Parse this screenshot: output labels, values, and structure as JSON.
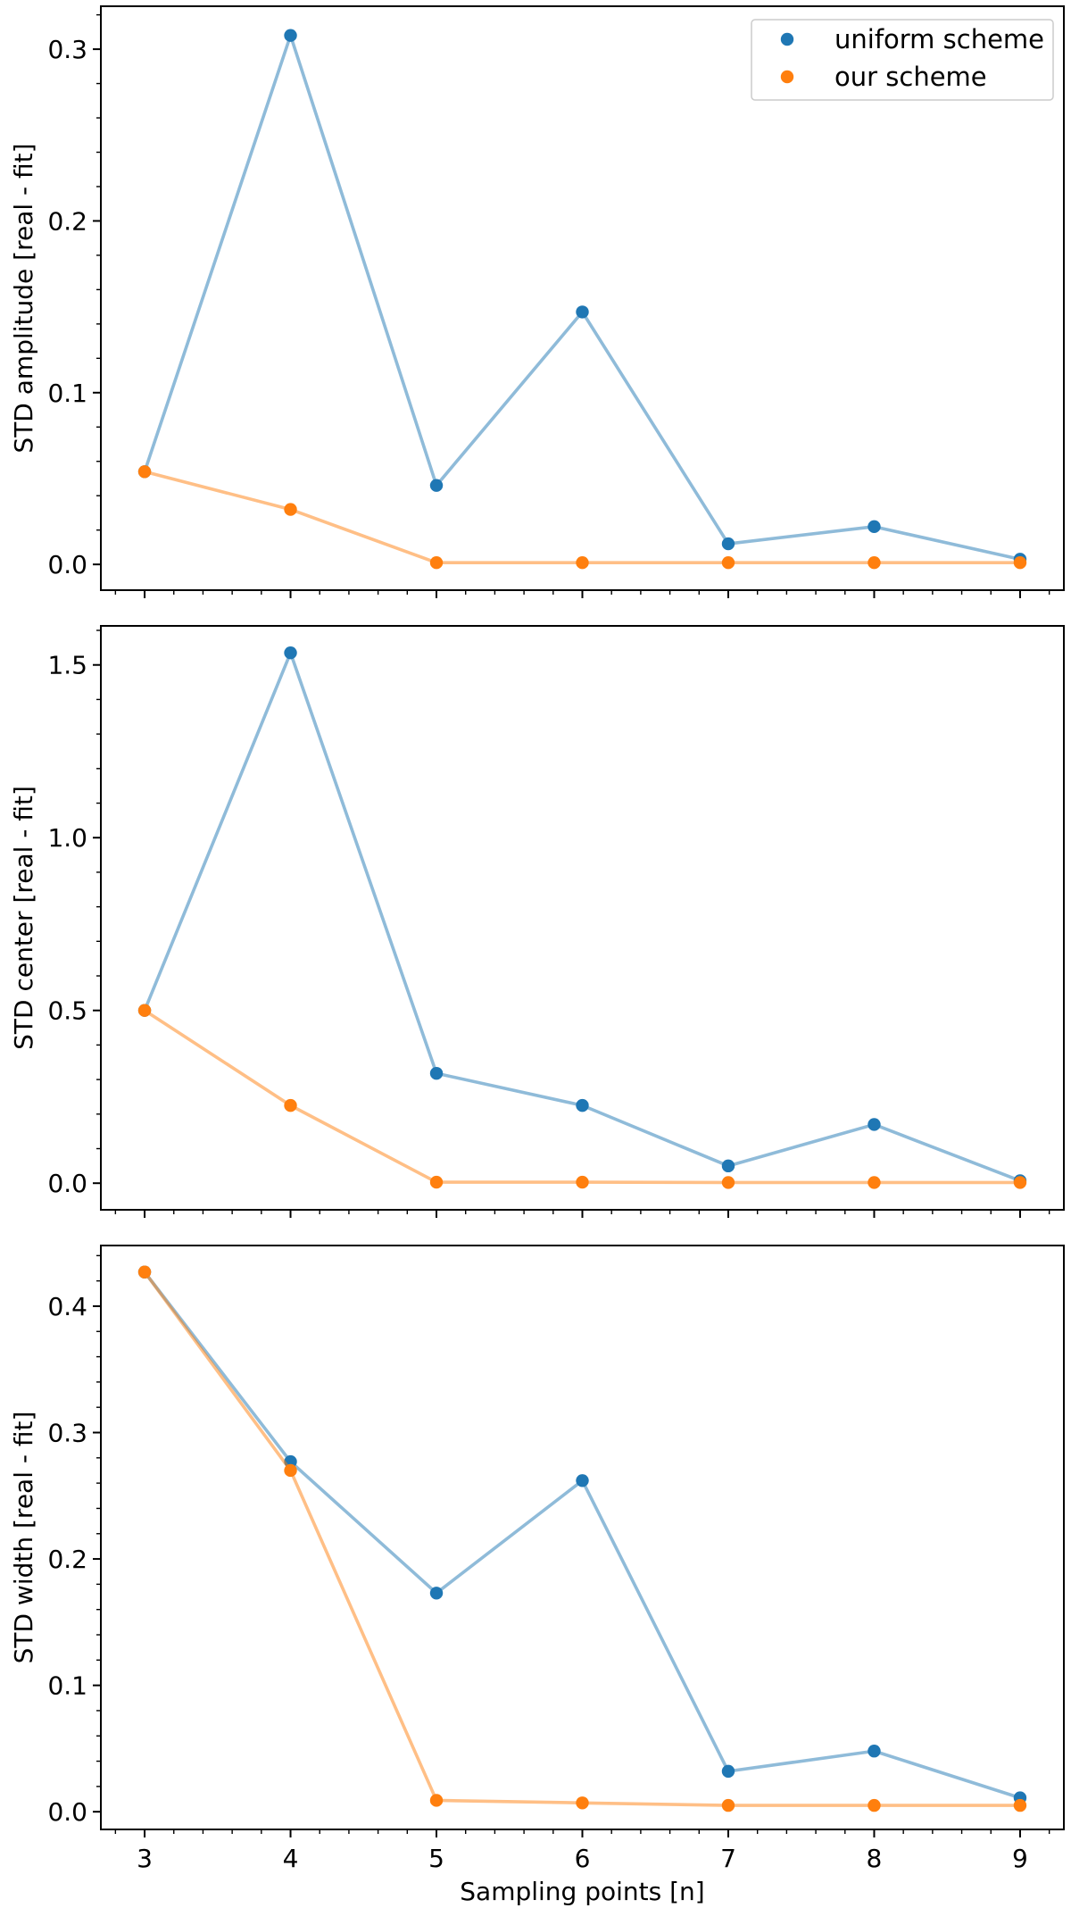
{
  "chart_data": [
    {
      "type": "line",
      "title": "",
      "xlabel": "",
      "ylabel": "STD amplitude [real - fit]",
      "x": [
        3,
        4,
        5,
        6,
        7,
        8,
        9
      ],
      "xlim": [
        2.7,
        9.3
      ],
      "ylim": [
        -0.015,
        0.325
      ],
      "yticks": [
        0.0,
        0.1,
        0.2,
        0.3
      ],
      "ytick_labels": [
        "0.0",
        "0.1",
        "0.2",
        "0.3"
      ],
      "grid": false,
      "legend": "top-right",
      "series": [
        {
          "name": "uniform scheme",
          "color": "#1f77b4",
          "values": [
            0.054,
            0.308,
            0.046,
            0.147,
            0.012,
            0.022,
            0.003
          ]
        },
        {
          "name": "our scheme",
          "color": "#ff7f0e",
          "values": [
            0.054,
            0.032,
            0.001,
            0.001,
            0.001,
            0.001,
            0.001
          ]
        }
      ]
    },
    {
      "type": "line",
      "title": "",
      "xlabel": "",
      "ylabel": "STD center [real - fit]",
      "x": [
        3,
        4,
        5,
        6,
        7,
        8,
        9
      ],
      "xlim": [
        2.7,
        9.3
      ],
      "ylim": [
        -0.077,
        1.613
      ],
      "yticks": [
        0.0,
        0.5,
        1.0,
        1.5
      ],
      "ytick_labels": [
        "0.0",
        "0.5",
        "1.0",
        "1.5"
      ],
      "grid": false,
      "legend": "none",
      "series": [
        {
          "name": "uniform scheme",
          "color": "#1f77b4",
          "values": [
            0.5,
            1.535,
            0.318,
            0.225,
            0.05,
            0.17,
            0.007
          ]
        },
        {
          "name": "our scheme",
          "color": "#ff7f0e",
          "values": [
            0.5,
            0.225,
            0.003,
            0.003,
            0.002,
            0.002,
            0.002
          ]
        }
      ]
    },
    {
      "type": "line",
      "title": "",
      "xlabel": "Sampling points [n]",
      "ylabel": "STD width [real - fit]",
      "x": [
        3,
        4,
        5,
        6,
        7,
        8,
        9
      ],
      "xticks": [
        3,
        4,
        5,
        6,
        7,
        8,
        9
      ],
      "xtick_labels": [
        "3",
        "4",
        "5",
        "6",
        "7",
        "8",
        "9"
      ],
      "xlim": [
        2.7,
        9.3
      ],
      "ylim": [
        -0.014,
        0.448
      ],
      "yticks": [
        0.0,
        0.1,
        0.2,
        0.3,
        0.4
      ],
      "ytick_labels": [
        "0.0",
        "0.1",
        "0.2",
        "0.3",
        "0.4"
      ],
      "grid": false,
      "legend": "none",
      "series": [
        {
          "name": "uniform scheme",
          "color": "#1f77b4",
          "values": [
            0.427,
            0.277,
            0.173,
            0.262,
            0.032,
            0.048,
            0.011
          ]
        },
        {
          "name": "our scheme",
          "color": "#ff7f0e",
          "values": [
            0.427,
            0.27,
            0.009,
            0.007,
            0.005,
            0.005,
            0.005
          ]
        }
      ]
    }
  ]
}
